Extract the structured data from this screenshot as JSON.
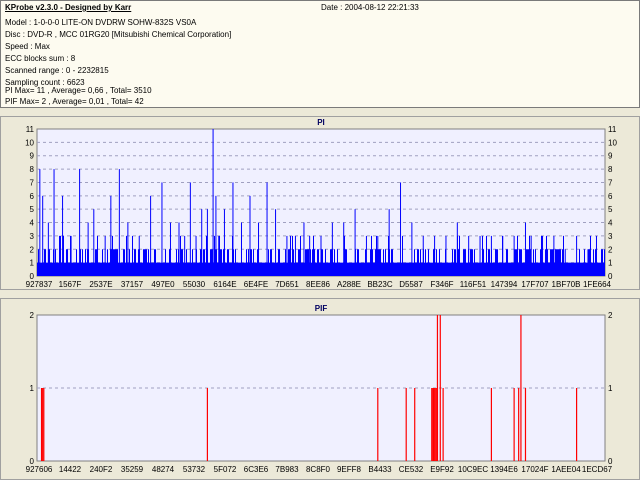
{
  "info": {
    "title": "KProbe v2.3.0 - Designed by Karr",
    "date": "Date : 2004-08-12 22:21:33",
    "lines": [
      "Model : 1-0-0-0 LITE-ON DVDRW SOHW-832S  VS0A",
      "Disc : DVD-R , MCC 01RG20  [Mitsubishi Chemical Corporation]",
      "Speed : Max",
      "ECC blocks sum : 8",
      "Scanned range : 0 - 2232815",
      "Sampling count : 6623",
      "PI Max= 11 , Average= 0,66 , Total= 3510",
      "PIF Max= 2 , Average= 0,01 , Total= 42"
    ]
  },
  "colors": {
    "pi_bar": "#0000ff",
    "pif_bar": "#ff0000",
    "plot_bg": "#f0f0ff",
    "grid": "#a0a0c0"
  },
  "chart_data": [
    {
      "type": "bar",
      "title": "PI",
      "ylim": [
        0,
        11
      ],
      "yticks": [
        "0",
        "1",
        "2",
        "3",
        "4",
        "5",
        "6",
        "7",
        "8",
        "9",
        "10",
        "11"
      ],
      "xticks": [
        "927837",
        "1567F",
        "2537E",
        "37157",
        "497E0",
        "55030",
        "6164E",
        "6E4FE",
        "7D651",
        "8EE86",
        "A288E",
        "BB23C",
        "D5587",
        "F346F",
        "116F51",
        "147394",
        "17F707",
        "1BF70B",
        "1FE664"
      ],
      "grid": true,
      "baseline_level": 1,
      "spikes": [
        [
          0.005,
          8
        ],
        [
          0.01,
          6
        ],
        [
          0.02,
          4
        ],
        [
          0.03,
          8
        ],
        [
          0.045,
          6
        ],
        [
          0.06,
          3
        ],
        [
          0.075,
          8
        ],
        [
          0.09,
          4
        ],
        [
          0.1,
          5
        ],
        [
          0.12,
          3
        ],
        [
          0.13,
          6
        ],
        [
          0.145,
          8
        ],
        [
          0.16,
          4
        ],
        [
          0.18,
          3
        ],
        [
          0.2,
          6
        ],
        [
          0.22,
          7
        ],
        [
          0.235,
          4
        ],
        [
          0.25,
          4
        ],
        [
          0.26,
          3
        ],
        [
          0.27,
          7
        ],
        [
          0.28,
          3
        ],
        [
          0.29,
          5
        ],
        [
          0.3,
          5
        ],
        [
          0.31,
          11
        ],
        [
          0.315,
          6
        ],
        [
          0.32,
          3
        ],
        [
          0.33,
          5
        ],
        [
          0.345,
          7
        ],
        [
          0.36,
          4
        ],
        [
          0.375,
          6
        ],
        [
          0.39,
          4
        ],
        [
          0.405,
          7
        ],
        [
          0.42,
          5
        ],
        [
          0.44,
          3
        ],
        [
          0.455,
          3
        ],
        [
          0.47,
          4
        ],
        [
          0.48,
          3
        ],
        [
          0.5,
          3
        ],
        [
          0.52,
          4
        ],
        [
          0.54,
          4
        ],
        [
          0.56,
          5
        ],
        [
          0.58,
          3
        ],
        [
          0.6,
          3
        ],
        [
          0.62,
          5
        ],
        [
          0.64,
          7
        ],
        [
          0.66,
          4
        ],
        [
          0.68,
          3
        ],
        [
          0.7,
          3
        ],
        [
          0.72,
          3
        ],
        [
          0.74,
          4
        ],
        [
          0.76,
          3
        ],
        [
          0.78,
          3
        ],
        [
          0.8,
          3
        ],
        [
          0.82,
          3
        ],
        [
          0.84,
          3
        ],
        [
          0.86,
          4
        ],
        [
          0.87,
          3
        ],
        [
          0.89,
          3
        ],
        [
          0.91,
          3
        ],
        [
          0.93,
          2
        ],
        [
          0.95,
          3
        ],
        [
          0.97,
          2
        ],
        [
          0.985,
          3
        ]
      ]
    },
    {
      "type": "bar",
      "title": "PIF",
      "ylim": [
        0,
        2
      ],
      "yticks": [
        "0",
        "1",
        "2"
      ],
      "xticks": [
        "927606",
        "14422",
        "240F2",
        "35259",
        "48274",
        "53732",
        "5F072",
        "6C3E6",
        "7B983",
        "8C8F0",
        "9EFF8",
        "B4433",
        "CE532",
        "E9F92",
        "10C9EC",
        "1394E6",
        "17024F",
        "1AEE04",
        "1ECD67"
      ],
      "grid": true,
      "spikes": [
        [
          0.008,
          1
        ],
        [
          0.01,
          1
        ],
        [
          0.012,
          1
        ],
        [
          0.3,
          1
        ],
        [
          0.6,
          1
        ],
        [
          0.65,
          1
        ],
        [
          0.665,
          1
        ],
        [
          0.695,
          1
        ],
        [
          0.697,
          1
        ],
        [
          0.699,
          1
        ],
        [
          0.701,
          1
        ],
        [
          0.703,
          1
        ],
        [
          0.705,
          2
        ],
        [
          0.71,
          2
        ],
        [
          0.715,
          1
        ],
        [
          0.8,
          1
        ],
        [
          0.84,
          1
        ],
        [
          0.848,
          1
        ],
        [
          0.852,
          2
        ],
        [
          0.86,
          1
        ],
        [
          0.95,
          1
        ]
      ]
    }
  ]
}
